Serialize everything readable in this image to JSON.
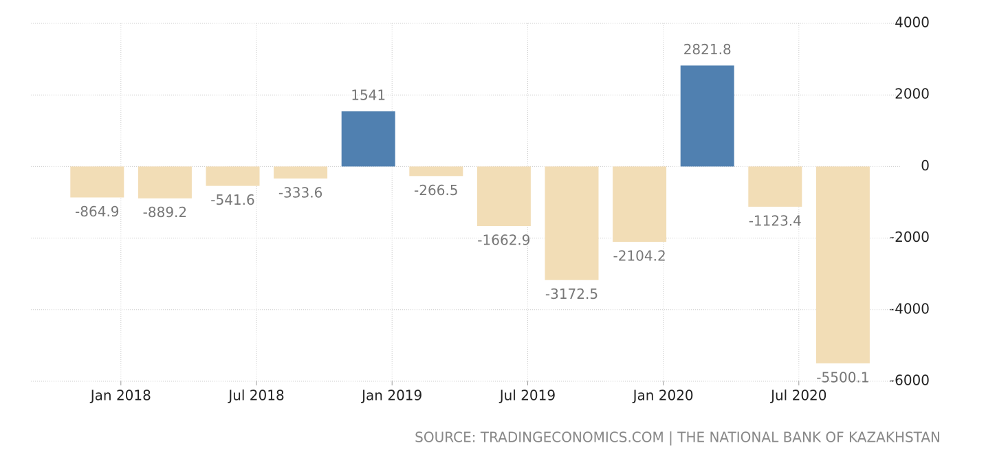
{
  "chart_data": {
    "type": "bar",
    "values": [
      -864.9,
      -889.2,
      -541.6,
      -333.6,
      1541,
      -266.5,
      -1662.9,
      -3172.5,
      -2104.2,
      2821.8,
      -1123.4,
      -5500.1
    ],
    "x_labels": [
      "Jan 2018",
      "Jul 2018",
      "Jan 2019",
      "Jul 2019",
      "Jan 2020",
      "Jul 2020"
    ],
    "positive_color": "#5080b0",
    "negative_color": "#f2ddb6",
    "ylim": [
      -6000,
      4000
    ],
    "yticks": [
      -6000,
      -4000,
      -2000,
      0,
      2000,
      4000
    ],
    "grid": true,
    "source": "SOURCE: TRADINGECONOMICS.COM | THE NATIONAL BANK OF KAZAKHSTAN"
  }
}
